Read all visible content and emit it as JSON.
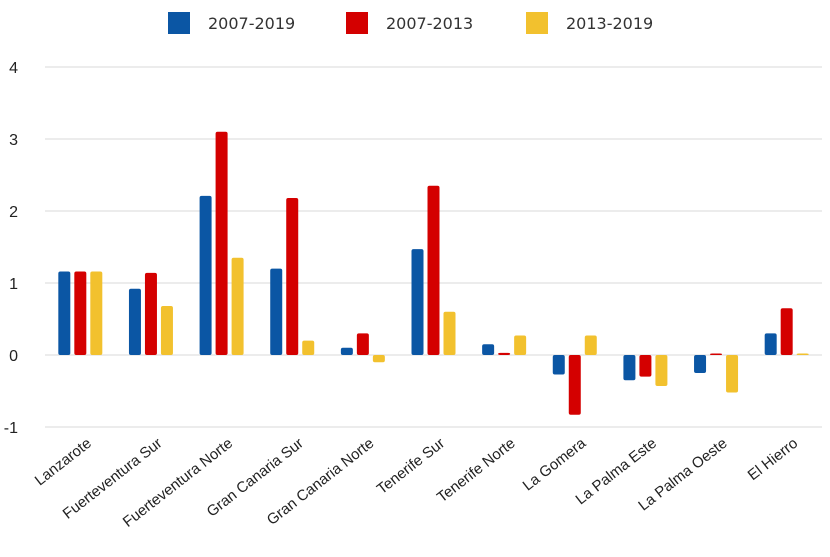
{
  "chart_data": {
    "type": "bar",
    "title": "",
    "xlabel": "",
    "ylabel": "",
    "ylim": [
      -1,
      4
    ],
    "yticks": [
      -1,
      0,
      1,
      2,
      3,
      4
    ],
    "grid": true,
    "legend_position": "top-center",
    "categories": [
      "Lanzarote",
      "Fuerteventura Sur",
      "Fuerteventura Norte",
      "Gran Canaria Sur",
      "Gran Canaria Norte",
      "Tenerife Sur",
      "Tenerife Norte",
      "La Gomera",
      "La Palma Este",
      "La Palma Oeste",
      "El Hierro"
    ],
    "series": [
      {
        "name": "2007-2019",
        "color": "#0b56a4",
        "values": [
          1.16,
          0.92,
          2.21,
          1.2,
          0.1,
          1.47,
          0.15,
          -0.27,
          -0.35,
          -0.25,
          0.3
        ]
      },
      {
        "name": "2007-2013",
        "color": "#d40000",
        "values": [
          1.16,
          1.14,
          3.1,
          2.18,
          0.3,
          2.35,
          0.03,
          -0.83,
          -0.3,
          0.0,
          0.65
        ]
      },
      {
        "name": "2013-2019",
        "color": "#f2c12e",
        "values": [
          1.16,
          0.68,
          1.35,
          0.2,
          -0.1,
          0.6,
          0.27,
          0.27,
          -0.43,
          -0.52,
          0.0
        ]
      }
    ]
  }
}
